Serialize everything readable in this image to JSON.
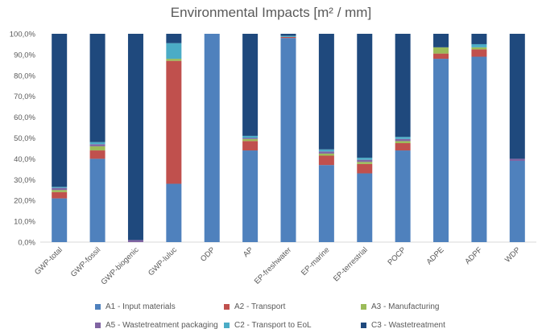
{
  "chart_data": {
    "type": "bar",
    "stacked": true,
    "title": "Environmental Impacts [m² / mm]",
    "categories": [
      "GWP-total",
      "GWP-fossil",
      "GWP-biogenic",
      "GWP-luluc",
      "ODP",
      "AP",
      "EP-freshwater",
      "EP-marine",
      "EP-terrestrial",
      "POCP",
      "ADPE",
      "ADPF",
      "WDP"
    ],
    "yticks": [
      "0,0%",
      "10,0%",
      "20,0%",
      "30,0%",
      "40,0%",
      "50,0%",
      "60,0%",
      "70,0%",
      "80,0%",
      "90,0%",
      "100,0%"
    ],
    "ylim": [
      0,
      100
    ],
    "series": [
      {
        "name": "A1 - Input materials",
        "color": "#4f81bd",
        "values": [
          21,
          40,
          0,
          28,
          100,
          44,
          98,
          37,
          33,
          44,
          88,
          89,
          39
        ]
      },
      {
        "name": "A2 - Transport",
        "color": "#c0504d",
        "values": [
          3,
          4,
          0,
          59,
          0,
          4.5,
          0.5,
          4.5,
          4.5,
          3.5,
          2.5,
          3.5,
          0
        ]
      },
      {
        "name": "A3 - Manufacturing",
        "color": "#9bbb59",
        "values": [
          1,
          2,
          0,
          1,
          0,
          1,
          0,
          1,
          1,
          1,
          3,
          1,
          0
        ]
      },
      {
        "name": "A5 - Wastetreatment packaging",
        "color": "#8064a2",
        "values": [
          1,
          1,
          1,
          0,
          0,
          0.5,
          0,
          1,
          1,
          1,
          0,
          0,
          1
        ]
      },
      {
        "name": "C2 - Transport to EoL",
        "color": "#4bacc6",
        "values": [
          0.5,
          1,
          0,
          7.5,
          0,
          1,
          0.5,
          1,
          1,
          1,
          0,
          1.5,
          0
        ]
      },
      {
        "name": "C3 - Wastetreatment",
        "color": "#1f497d",
        "values": [
          73.5,
          52,
          99,
          4.5,
          0,
          49,
          1,
          55.5,
          59.5,
          49.5,
          6.5,
          5,
          60
        ]
      }
    ],
    "legend_position": "bottom",
    "grid": false
  }
}
